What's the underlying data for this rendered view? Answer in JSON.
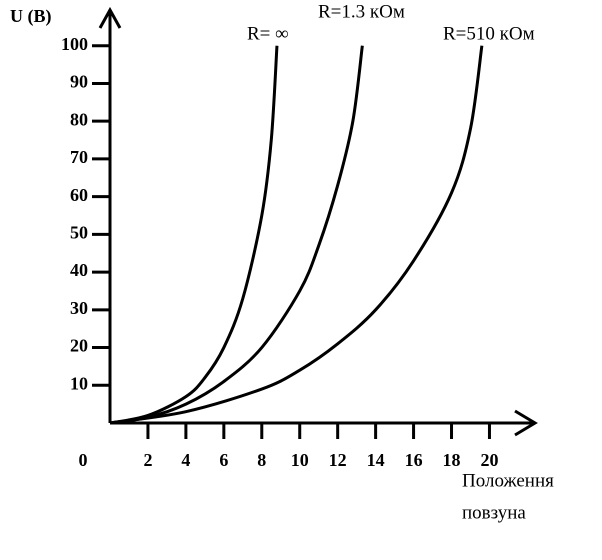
{
  "chart_data": {
    "type": "line",
    "ylabel": "U (B)",
    "xlabel": [
      "Положення",
      "повзуна"
    ],
    "xlim": [
      0,
      22.4
    ],
    "ylim": [
      0,
      110
    ],
    "xticks": [
      0,
      2,
      4,
      6,
      8,
      10,
      12,
      14,
      16,
      18,
      20
    ],
    "yticks": [
      10,
      20,
      30,
      40,
      50,
      60,
      70,
      80,
      90,
      100
    ],
    "series": [
      {
        "name": "R= ∞",
        "color": "#000000",
        "x": [
          0,
          2,
          4,
          5,
          6,
          7,
          8,
          8.5,
          8.8
        ],
        "values": [
          0,
          2,
          7,
          12,
          20,
          33,
          55,
          75,
          100
        ]
      },
      {
        "name": "R=1.3 кОм",
        "color": "#000000",
        "x": [
          0,
          2,
          4,
          6,
          8,
          10,
          11,
          12,
          12.8,
          13.3
        ],
        "values": [
          0,
          1.5,
          5,
          11,
          20,
          35,
          47,
          63,
          80,
          100
        ]
      },
      {
        "name": "R=510 кОм",
        "color": "#000000",
        "x": [
          0,
          4,
          8,
          10,
          12,
          14,
          16,
          18,
          19,
          19.6
        ],
        "values": [
          0,
          3,
          9,
          14,
          21,
          30,
          43,
          61,
          78,
          100
        ]
      }
    ]
  }
}
